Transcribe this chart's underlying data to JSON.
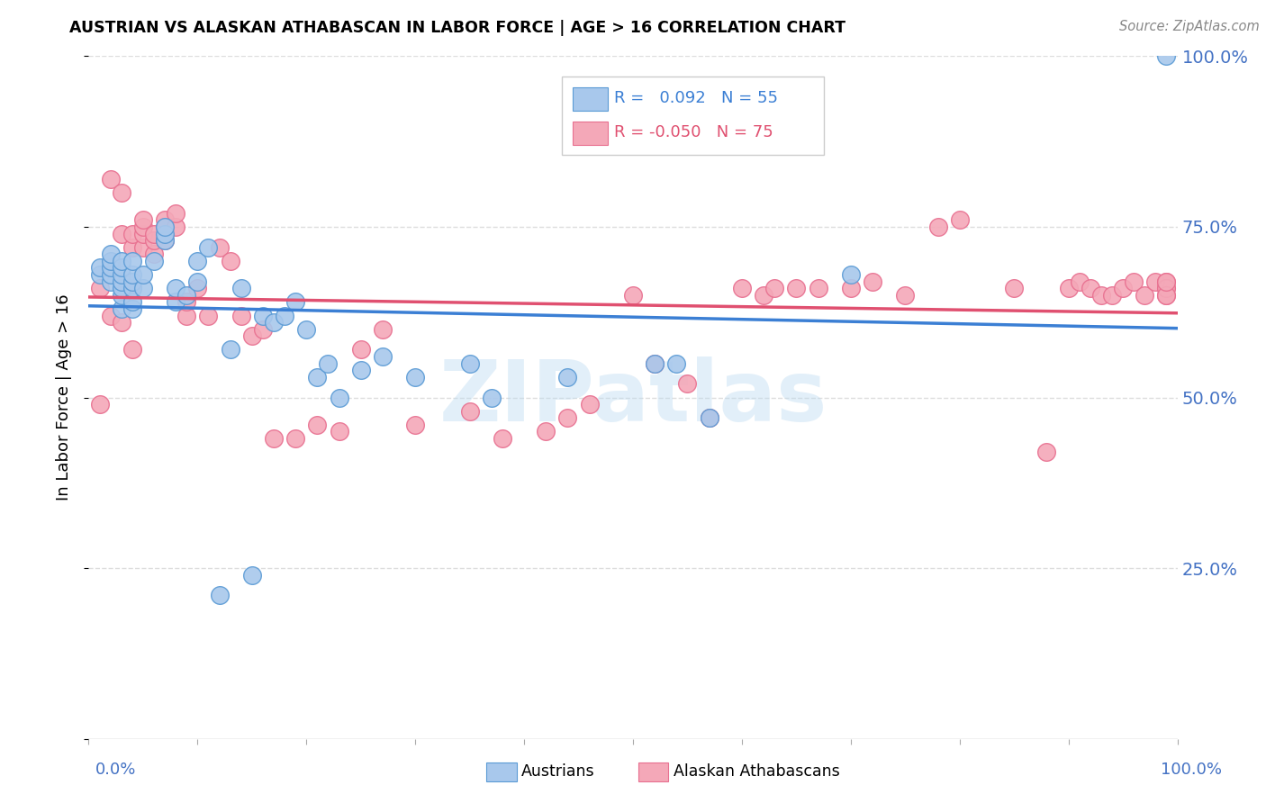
{
  "title": "AUSTRIAN VS ALASKAN ATHABASCAN IN LABOR FORCE | AGE > 16 CORRELATION CHART",
  "source": "Source: ZipAtlas.com",
  "ylabel": "In Labor Force | Age > 16",
  "legend_blue_r": " 0.092",
  "legend_blue_n": "55",
  "legend_pink_r": "-0.050",
  "legend_pink_n": "75",
  "blue_color": "#A8C8EC",
  "pink_color": "#F4A8B8",
  "blue_edge_color": "#5B9BD5",
  "pink_edge_color": "#E87090",
  "blue_line_color": "#3B7FD4",
  "pink_line_color": "#E05070",
  "label_color": "#4472C4",
  "watermark": "ZIPatlas",
  "background_color": "#FFFFFF",
  "grid_color": "#DDDDDD",
  "blue_points_x": [
    0.01,
    0.01,
    0.02,
    0.02,
    0.02,
    0.02,
    0.02,
    0.03,
    0.03,
    0.03,
    0.03,
    0.03,
    0.03,
    0.03,
    0.04,
    0.04,
    0.04,
    0.04,
    0.04,
    0.04,
    0.05,
    0.05,
    0.06,
    0.07,
    0.07,
    0.07,
    0.08,
    0.08,
    0.09,
    0.1,
    0.1,
    0.11,
    0.12,
    0.13,
    0.14,
    0.15,
    0.16,
    0.17,
    0.18,
    0.19,
    0.2,
    0.21,
    0.22,
    0.23,
    0.25,
    0.27,
    0.3,
    0.35,
    0.37,
    0.44,
    0.52,
    0.54,
    0.57,
    0.7,
    0.99
  ],
  "blue_points_y": [
    0.68,
    0.69,
    0.67,
    0.68,
    0.69,
    0.7,
    0.71,
    0.63,
    0.65,
    0.66,
    0.67,
    0.68,
    0.69,
    0.7,
    0.63,
    0.64,
    0.66,
    0.67,
    0.68,
    0.7,
    0.66,
    0.68,
    0.7,
    0.73,
    0.74,
    0.75,
    0.64,
    0.66,
    0.65,
    0.67,
    0.7,
    0.72,
    0.21,
    0.57,
    0.66,
    0.24,
    0.62,
    0.61,
    0.62,
    0.64,
    0.6,
    0.53,
    0.55,
    0.5,
    0.54,
    0.56,
    0.53,
    0.55,
    0.5,
    0.53,
    0.55,
    0.55,
    0.47,
    0.68,
    1.0
  ],
  "pink_points_x": [
    0.01,
    0.01,
    0.02,
    0.02,
    0.03,
    0.03,
    0.03,
    0.04,
    0.04,
    0.04,
    0.04,
    0.05,
    0.05,
    0.05,
    0.05,
    0.06,
    0.06,
    0.06,
    0.07,
    0.07,
    0.07,
    0.08,
    0.08,
    0.09,
    0.09,
    0.1,
    0.11,
    0.12,
    0.13,
    0.14,
    0.15,
    0.16,
    0.17,
    0.19,
    0.21,
    0.23,
    0.25,
    0.27,
    0.3,
    0.35,
    0.38,
    0.42,
    0.44,
    0.46,
    0.5,
    0.52,
    0.55,
    0.57,
    0.6,
    0.62,
    0.63,
    0.65,
    0.67,
    0.7,
    0.72,
    0.75,
    0.78,
    0.8,
    0.85,
    0.88,
    0.9,
    0.91,
    0.92,
    0.93,
    0.94,
    0.95,
    0.96,
    0.97,
    0.98,
    0.99,
    0.99,
    0.99,
    0.99,
    0.99,
    0.99
  ],
  "pink_points_y": [
    0.66,
    0.49,
    0.82,
    0.62,
    0.61,
    0.74,
    0.8,
    0.57,
    0.66,
    0.72,
    0.74,
    0.72,
    0.74,
    0.75,
    0.76,
    0.71,
    0.73,
    0.74,
    0.73,
    0.75,
    0.76,
    0.75,
    0.77,
    0.62,
    0.64,
    0.66,
    0.62,
    0.72,
    0.7,
    0.62,
    0.59,
    0.6,
    0.44,
    0.44,
    0.46,
    0.45,
    0.57,
    0.6,
    0.46,
    0.48,
    0.44,
    0.45,
    0.47,
    0.49,
    0.65,
    0.55,
    0.52,
    0.47,
    0.66,
    0.65,
    0.66,
    0.66,
    0.66,
    0.66,
    0.67,
    0.65,
    0.75,
    0.76,
    0.66,
    0.42,
    0.66,
    0.67,
    0.66,
    0.65,
    0.65,
    0.66,
    0.67,
    0.65,
    0.67,
    0.67,
    0.66,
    0.65,
    0.66,
    0.65,
    0.67
  ]
}
